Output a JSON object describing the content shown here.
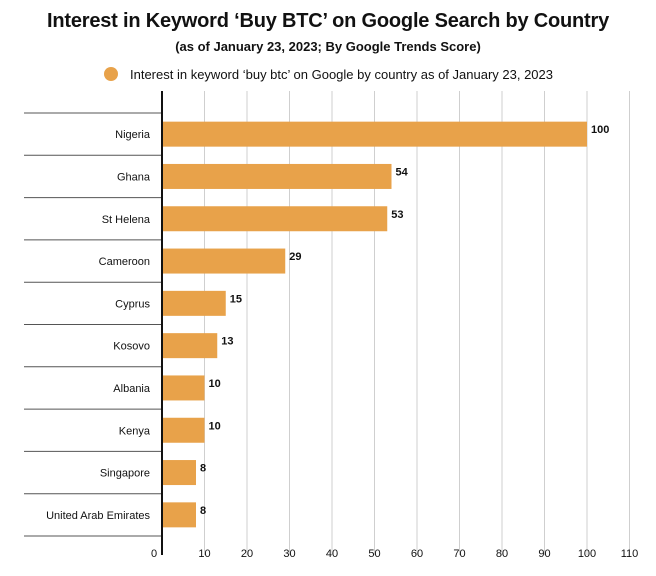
{
  "header": {
    "title": "Interest in Keyword ‘Buy BTC’ on Google Search by Country",
    "subtitle": "(as of January 23, 2023; By Google Trends Score)"
  },
  "legend": {
    "label": "Interest in keyword ‘buy btc’ on Google by country as of January 23, 2023",
    "color": "#E8A24A"
  },
  "chart_data": {
    "type": "bar",
    "orientation": "horizontal",
    "title": "Interest in Keyword ‘Buy BTC’ on Google Search by Country",
    "subtitle": "(as of January 23, 2023; By Google Trends Score)",
    "categories": [
      "Nigeria",
      "Ghana",
      "St Helena",
      "Cameroon",
      "Cyprus",
      "Kosovo",
      "Albania",
      "Kenya",
      "Singapore",
      "United Arab Emirates"
    ],
    "series": [
      {
        "name": "Interest in keyword ‘buy btc’ on Google by country as of January 23, 2023",
        "values": [
          100,
          54,
          53,
          29,
          15,
          13,
          10,
          10,
          8,
          8
        ],
        "color": "#E8A24A"
      }
    ],
    "xlim": [
      0,
      110
    ],
    "xticks": [
      0,
      10,
      20,
      30,
      40,
      50,
      60,
      70,
      80,
      90,
      100,
      110
    ],
    "grid": true,
    "legend_position": "top",
    "data_labels": true
  }
}
